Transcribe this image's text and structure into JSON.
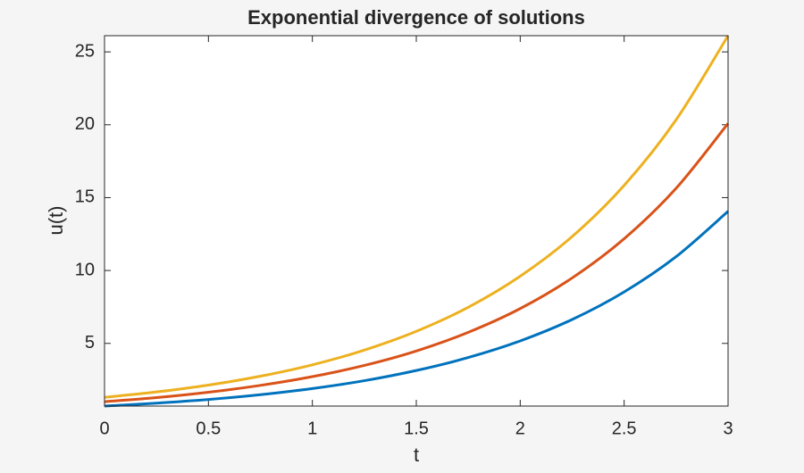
{
  "chart_data": {
    "type": "line",
    "title": "Exponential divergence of solutions",
    "x_label": "t",
    "y_label": "u(t)",
    "x": [
      0,
      0.25,
      0.5,
      0.75,
      1,
      1.25,
      1.5,
      1.75,
      2,
      2.25,
      2.5,
      2.75,
      3
    ],
    "series": [
      {
        "color": "#0072bd",
        "values": [
          0.7,
          0.9,
          1.15,
          1.48,
          1.9,
          2.44,
          3.14,
          4.03,
          5.17,
          6.64,
          8.53,
          10.95,
          14.06
        ]
      },
      {
        "color": "#d95319",
        "values": [
          1.0,
          1.28,
          1.65,
          2.12,
          2.72,
          3.49,
          4.48,
          5.76,
          7.39,
          9.49,
          12.18,
          15.64,
          20.09
        ]
      },
      {
        "color": "#edb120",
        "values": [
          1.3,
          1.67,
          2.14,
          2.75,
          3.53,
          4.54,
          5.83,
          7.48,
          9.61,
          12.33,
          15.84,
          20.34,
          26.11
        ]
      }
    ],
    "xlim": [
      0,
      3
    ],
    "ylim": [
      0.7,
      26.11
    ],
    "xticks": [
      0,
      0.5,
      1,
      1.5,
      2,
      2.5,
      3
    ],
    "yticks": [
      5,
      10,
      15,
      20,
      25
    ],
    "grid": false
  }
}
